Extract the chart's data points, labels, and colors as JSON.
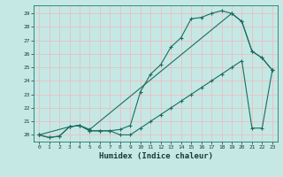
{
  "xlabel": "Humidex (Indice chaleur)",
  "bg_color": "#c5e8e5",
  "grid_color": "#e8c0c0",
  "line_color": "#1a6e60",
  "xlim": [
    -0.5,
    23.5
  ],
  "ylim": [
    19.5,
    29.6
  ],
  "yticks": [
    20,
    21,
    22,
    23,
    24,
    25,
    26,
    27,
    28,
    29
  ],
  "xticks": [
    0,
    1,
    2,
    3,
    4,
    5,
    6,
    7,
    8,
    9,
    10,
    11,
    12,
    13,
    14,
    15,
    16,
    17,
    18,
    19,
    20,
    21,
    22,
    23
  ],
  "line1_x": [
    0,
    1,
    2,
    3,
    4,
    5,
    6,
    7,
    8,
    9,
    10,
    11,
    12,
    13,
    14,
    15,
    16,
    17,
    18,
    19,
    20,
    21,
    22,
    23
  ],
  "line1_y": [
    20.0,
    19.8,
    19.9,
    20.6,
    20.7,
    20.3,
    20.3,
    20.3,
    20.0,
    20.0,
    20.5,
    21.0,
    21.5,
    22.0,
    22.5,
    23.0,
    23.5,
    24.0,
    24.5,
    25.0,
    25.5,
    20.5,
    20.5,
    24.8
  ],
  "line2_x": [
    0,
    1,
    2,
    3,
    4,
    5,
    6,
    7,
    8,
    9,
    10,
    11,
    12,
    13,
    14,
    15,
    16,
    17,
    18,
    19,
    20,
    21,
    22,
    23
  ],
  "line2_y": [
    20.0,
    19.8,
    19.9,
    20.6,
    20.7,
    20.3,
    20.3,
    20.3,
    20.4,
    20.7,
    23.2,
    24.5,
    25.2,
    26.5,
    27.2,
    28.6,
    28.7,
    29.0,
    29.2,
    29.0,
    28.4,
    26.2,
    25.7,
    24.8
  ],
  "line3_x": [
    0,
    3,
    4,
    5,
    19,
    20,
    21,
    22,
    23
  ],
  "line3_y": [
    20.0,
    20.6,
    20.7,
    20.4,
    29.0,
    28.4,
    26.2,
    25.7,
    24.8
  ]
}
